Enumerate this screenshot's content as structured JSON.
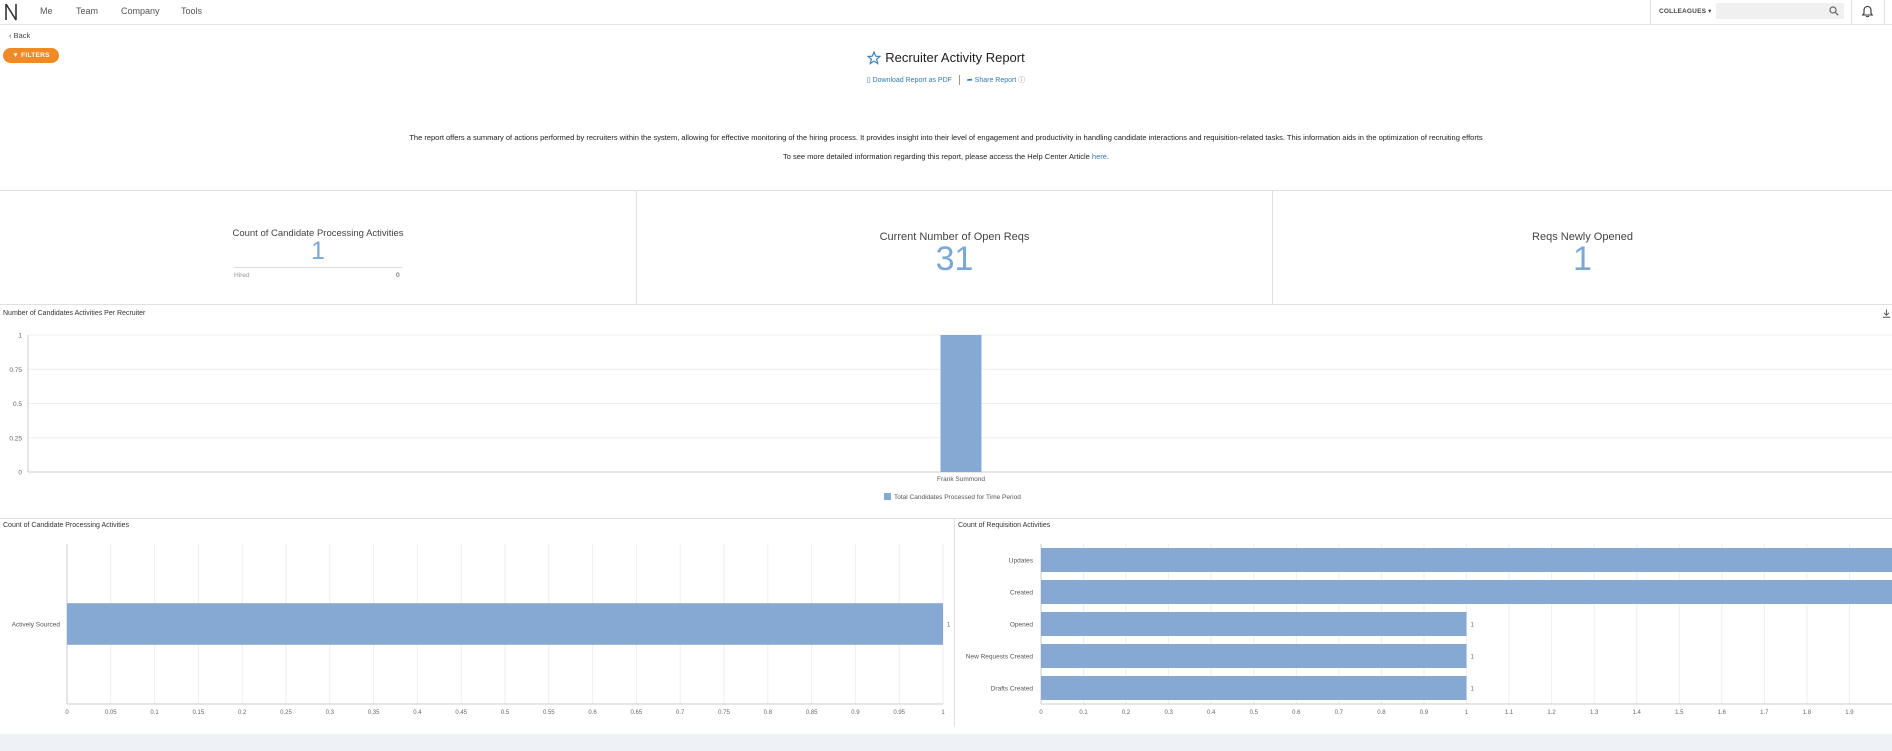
{
  "nav": {
    "items": [
      "Me",
      "Team",
      "Company",
      "Tools"
    ],
    "colleagues_label": "COLLEAGUES",
    "search_placeholder": ""
  },
  "back_label": "Back",
  "filters_label": "FILTERS",
  "report": {
    "title": "Recruiter Activity Report",
    "download_label": "Download Report as PDF",
    "share_label": "Share Report",
    "description": "The report offers a summary of actions performed by recruiters within the system, allowing for effective monitoring of the hiring process. It provides insight into their level of engagement and productivity in handling candidate interactions and requisition-related tasks. This information aids in the optimization of recruiting efforts",
    "help_text": "To see more detailed information regarding this report, please access the Help Center Article",
    "help_link": "here",
    "help_tail": "."
  },
  "kpis": {
    "candidate_activities": {
      "label": "Count of Candidate Processing Activities",
      "value": "1",
      "sub_label": "Hired",
      "sub_value": "0"
    },
    "open_reqs": {
      "label": "Current Number of Open Reqs",
      "value": "31"
    },
    "new_reqs": {
      "label": "Reqs Newly Opened",
      "value": "1"
    }
  },
  "colors": {
    "bar": "#86a9d3",
    "accent": "#f08a24",
    "link": "#337ab7"
  },
  "chart_data": [
    {
      "type": "bar",
      "title": "Number of Candidates Activities Per Recruiter",
      "categories": [
        "Frank Summond"
      ],
      "series": [
        {
          "name": "Total Candidates Processed for Time Period",
          "values": [
            1
          ]
        }
      ],
      "yticks": [
        "0",
        "0.25",
        "0.5",
        "0.75",
        "1"
      ],
      "ylim": [
        0,
        1
      ],
      "legend": "bottom"
    },
    {
      "type": "bar",
      "orientation": "horizontal",
      "title": "Count of Candidate Processing Activities",
      "categories": [
        "Actively Sourced"
      ],
      "values": [
        1
      ],
      "data_labels": [
        "1"
      ],
      "xticks": [
        "0",
        "0.05",
        "0.1",
        "0.15",
        "0.2",
        "0.25",
        "0.3",
        "0.35",
        "0.4",
        "0.45",
        "0.5",
        "0.55",
        "0.6",
        "0.65",
        "0.7",
        "0.75",
        "0.8",
        "0.85",
        "0.9",
        "0.95",
        "1"
      ],
      "xlim": [
        0,
        1
      ]
    },
    {
      "type": "bar",
      "orientation": "horizontal",
      "title": "Count of Requisition Activities",
      "categories": [
        "Updates",
        "Created",
        "Opened",
        "New Requests Created",
        "Drafts Created"
      ],
      "values": [
        2,
        2,
        1,
        1,
        1
      ],
      "data_labels": [
        "",
        "",
        "1",
        "1",
        "1"
      ],
      "xticks": [
        "0",
        "0.1",
        "0.2",
        "0.3",
        "0.4",
        "0.5",
        "0.6",
        "0.7",
        "0.8",
        "0.9",
        "1",
        "1.1",
        "1.2",
        "1.3",
        "1.4",
        "1.5",
        "1.6",
        "1.7",
        "1.8",
        "1.9"
      ],
      "xlim": [
        0,
        2
      ]
    }
  ]
}
